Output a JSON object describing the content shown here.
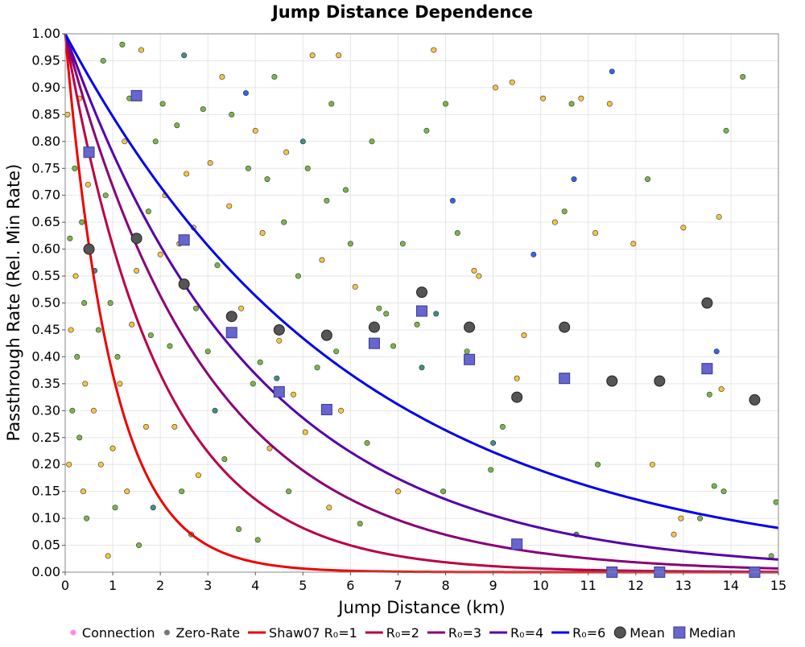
{
  "chart_data": {
    "type": "scatter",
    "title": "Jump Distance Dependence",
    "xlabel": "Jump Distance (km)",
    "ylabel": "Passthrough Rate (Rel. Min Rate)",
    "xlim": [
      0,
      15
    ],
    "ylim": [
      0,
      1
    ],
    "x_ticks": [
      "0",
      "1",
      "2",
      "3",
      "4",
      "5",
      "6",
      "7",
      "8",
      "9",
      "10",
      "11",
      "12",
      "13",
      "14",
      "15"
    ],
    "y_ticks": [
      "0.00",
      "0.05",
      "0.10",
      "0.15",
      "0.20",
      "0.25",
      "0.30",
      "0.35",
      "0.40",
      "0.45",
      "0.50",
      "0.55",
      "0.60",
      "0.65",
      "0.70",
      "0.75",
      "0.80",
      "0.85",
      "0.90",
      "0.95",
      "1.00"
    ],
    "grid": true,
    "legend_position": "bottom",
    "colors": {
      "connection": "#ff88ee",
      "zero_rate": "#777777",
      "r1": "#ee0000",
      "r2": "#bb0044",
      "r3": "#880077",
      "r4": "#5500aa",
      "r6": "#0000ee",
      "mean": "#555555",
      "median": "#6666cc",
      "point_low": "#f5c542",
      "point_mid": "#7ab648",
      "point_high": "#2f66e8"
    },
    "legend": [
      {
        "label": "Connection",
        "kind": "dot",
        "color": "#ff88ee"
      },
      {
        "label": "Zero-Rate",
        "kind": "dot",
        "color": "#777777"
      },
      {
        "label": "Shaw07 R₀=1",
        "kind": "line",
        "color": "#ee0000"
      },
      {
        "label": "R₀=2",
        "kind": "line",
        "color": "#bb0044"
      },
      {
        "label": "R₀=3",
        "kind": "line",
        "color": "#880077"
      },
      {
        "label": "R₀=4",
        "kind": "line",
        "color": "#5500aa"
      },
      {
        "label": "R₀=6",
        "kind": "line",
        "color": "#0000ee"
      },
      {
        "label": "Mean",
        "kind": "circle",
        "color": "#555555"
      },
      {
        "label": "Median",
        "kind": "square",
        "color": "#6666cc"
      }
    ],
    "curves": [
      {
        "name": "Shaw07 R₀=1",
        "r0": 1,
        "color": "#ee0000"
      },
      {
        "name": "R₀=2",
        "r0": 2,
        "color": "#bb0044"
      },
      {
        "name": "R₀=3",
        "r0": 3,
        "color": "#880077"
      },
      {
        "name": "R₀=4",
        "r0": 4,
        "color": "#5500aa"
      },
      {
        "name": "R₀=6",
        "r0": 6,
        "color": "#0000ee"
      }
    ],
    "means": [
      [
        0.5,
        0.6
      ],
      [
        1.5,
        0.62
      ],
      [
        2.5,
        0.535
      ],
      [
        3.5,
        0.475
      ],
      [
        4.5,
        0.45
      ],
      [
        5.5,
        0.44
      ],
      [
        6.5,
        0.455
      ],
      [
        7.5,
        0.52
      ],
      [
        8.5,
        0.455
      ],
      [
        9.5,
        0.325
      ],
      [
        10.5,
        0.455
      ],
      [
        11.5,
        0.355
      ],
      [
        12.5,
        0.355
      ],
      [
        13.5,
        0.5
      ],
      [
        14.5,
        0.32
      ]
    ],
    "medians": [
      [
        0.5,
        0.78
      ],
      [
        1.5,
        0.885
      ],
      [
        2.5,
        0.617
      ],
      [
        3.5,
        0.445
      ],
      [
        4.5,
        0.335
      ],
      [
        5.5,
        0.302
      ],
      [
        6.5,
        0.425
      ],
      [
        7.5,
        0.485
      ],
      [
        8.5,
        0.395
      ],
      [
        9.5,
        0.052
      ],
      [
        10.5,
        0.36
      ],
      [
        11.5,
        0.0
      ],
      [
        12.5,
        0.0
      ],
      [
        13.5,
        0.378
      ],
      [
        14.5,
        0.0
      ]
    ],
    "points": [
      [
        0.05,
        0.85,
        "y"
      ],
      [
        0.1,
        0.62,
        "g"
      ],
      [
        0.12,
        0.45,
        "y"
      ],
      [
        0.15,
        0.3,
        "g"
      ],
      [
        0.08,
        0.2,
        "y"
      ],
      [
        0.2,
        0.75,
        "g"
      ],
      [
        0.22,
        0.55,
        "y"
      ],
      [
        0.25,
        0.4,
        "g"
      ],
      [
        0.3,
        0.88,
        "y"
      ],
      [
        0.3,
        0.25,
        "g"
      ],
      [
        0.35,
        0.65,
        "g"
      ],
      [
        0.38,
        0.15,
        "y"
      ],
      [
        0.4,
        0.5,
        "g"
      ],
      [
        0.42,
        0.35,
        "y"
      ],
      [
        0.45,
        0.1,
        "g"
      ],
      [
        0.48,
        0.72,
        "y"
      ],
      [
        0.55,
        0.6,
        "g"
      ],
      [
        0.6,
        0.3,
        "y"
      ],
      [
        0.62,
        0.56,
        "t"
      ],
      [
        0.7,
        0.45,
        "g"
      ],
      [
        0.75,
        0.2,
        "y"
      ],
      [
        0.8,
        0.95,
        "g"
      ],
      [
        0.85,
        0.7,
        "g"
      ],
      [
        0.9,
        0.03,
        "y"
      ],
      [
        0.95,
        0.5,
        "g"
      ],
      [
        1.0,
        0.23,
        "y"
      ],
      [
        1.05,
        0.12,
        "g"
      ],
      [
        1.1,
        0.4,
        "g"
      ],
      [
        1.15,
        0.35,
        "y"
      ],
      [
        1.2,
        0.98,
        "g"
      ],
      [
        1.25,
        0.8,
        "y"
      ],
      [
        1.3,
        0.15,
        "y"
      ],
      [
        1.35,
        0.88,
        "g"
      ],
      [
        1.4,
        0.46,
        "y"
      ],
      [
        1.45,
        0.62,
        "g"
      ],
      [
        1.5,
        0.56,
        "y"
      ],
      [
        1.55,
        0.05,
        "g"
      ],
      [
        1.6,
        0.97,
        "y"
      ],
      [
        1.7,
        0.27,
        "y"
      ],
      [
        1.75,
        0.67,
        "g"
      ],
      [
        1.8,
        0.44,
        "g"
      ],
      [
        1.85,
        0.12,
        "t"
      ],
      [
        1.9,
        0.8,
        "g"
      ],
      [
        2.0,
        0.59,
        "y"
      ],
      [
        2.05,
        0.87,
        "g"
      ],
      [
        2.1,
        0.7,
        "y"
      ],
      [
        2.2,
        0.42,
        "g"
      ],
      [
        2.3,
        0.27,
        "y"
      ],
      [
        2.35,
        0.83,
        "g"
      ],
      [
        2.4,
        0.61,
        "y"
      ],
      [
        2.45,
        0.15,
        "g"
      ],
      [
        2.5,
        0.96,
        "t"
      ],
      [
        2.55,
        0.74,
        "y"
      ],
      [
        2.65,
        0.07,
        "g"
      ],
      [
        2.7,
        0.64,
        "y"
      ],
      [
        2.75,
        0.49,
        "g"
      ],
      [
        2.8,
        0.18,
        "y"
      ],
      [
        2.9,
        0.86,
        "g"
      ],
      [
        3.0,
        0.41,
        "g"
      ],
      [
        3.05,
        0.76,
        "y"
      ],
      [
        3.15,
        0.3,
        "t"
      ],
      [
        3.2,
        0.57,
        "g"
      ],
      [
        3.3,
        0.92,
        "y"
      ],
      [
        3.35,
        0.21,
        "g"
      ],
      [
        3.45,
        0.68,
        "y"
      ],
      [
        3.5,
        0.85,
        "g"
      ],
      [
        3.55,
        0.45,
        "y"
      ],
      [
        3.65,
        0.08,
        "g"
      ],
      [
        3.7,
        0.49,
        "y"
      ],
      [
        3.8,
        0.89,
        "b"
      ],
      [
        3.85,
        0.75,
        "g"
      ],
      [
        3.95,
        0.35,
        "g"
      ],
      [
        4.0,
        0.82,
        "y"
      ],
      [
        4.05,
        0.06,
        "g"
      ],
      [
        4.1,
        0.39,
        "g"
      ],
      [
        4.15,
        0.63,
        "y"
      ],
      [
        4.25,
        0.73,
        "g"
      ],
      [
        4.3,
        0.23,
        "y"
      ],
      [
        4.4,
        0.92,
        "g"
      ],
      [
        4.45,
        0.36,
        "t"
      ],
      [
        4.5,
        0.43,
        "y"
      ],
      [
        4.6,
        0.65,
        "g"
      ],
      [
        4.65,
        0.78,
        "y"
      ],
      [
        4.7,
        0.15,
        "g"
      ],
      [
        4.8,
        0.33,
        "y"
      ],
      [
        4.9,
        0.55,
        "g"
      ],
      [
        5.0,
        0.8,
        "t"
      ],
      [
        5.05,
        0.26,
        "y"
      ],
      [
        5.1,
        0.75,
        "g"
      ],
      [
        5.2,
        0.96,
        "y"
      ],
      [
        5.3,
        0.38,
        "g"
      ],
      [
        5.4,
        0.58,
        "y"
      ],
      [
        5.5,
        0.69,
        "g"
      ],
      [
        5.55,
        0.12,
        "y"
      ],
      [
        5.6,
        0.87,
        "g"
      ],
      [
        5.7,
        0.41,
        "g"
      ],
      [
        5.75,
        0.96,
        "y"
      ],
      [
        5.8,
        0.3,
        "y"
      ],
      [
        5.9,
        0.71,
        "g"
      ],
      [
        6.0,
        0.61,
        "g"
      ],
      [
        6.1,
        0.53,
        "y"
      ],
      [
        6.2,
        0.09,
        "g"
      ],
      [
        6.35,
        0.24,
        "g"
      ],
      [
        6.45,
        0.8,
        "g"
      ],
      [
        6.6,
        0.49,
        "g"
      ],
      [
        6.75,
        0.48,
        "g"
      ],
      [
        6.9,
        0.42,
        "g"
      ],
      [
        7.0,
        0.15,
        "y"
      ],
      [
        7.1,
        0.61,
        "g"
      ],
      [
        7.4,
        0.46,
        "g"
      ],
      [
        7.5,
        0.38,
        "t"
      ],
      [
        7.55,
        0.48,
        "y"
      ],
      [
        7.6,
        0.82,
        "g"
      ],
      [
        7.75,
        0.97,
        "y"
      ],
      [
        7.8,
        0.48,
        "t"
      ],
      [
        7.95,
        0.15,
        "g"
      ],
      [
        8.0,
        0.87,
        "g"
      ],
      [
        8.15,
        0.69,
        "b"
      ],
      [
        8.25,
        0.63,
        "g"
      ],
      [
        8.45,
        0.41,
        "g"
      ],
      [
        8.6,
        0.56,
        "y"
      ],
      [
        8.7,
        0.55,
        "y"
      ],
      [
        8.95,
        0.19,
        "g"
      ],
      [
        9.0,
        0.24,
        "t"
      ],
      [
        9.05,
        0.9,
        "y"
      ],
      [
        9.2,
        0.27,
        "g"
      ],
      [
        9.4,
        0.91,
        "y"
      ],
      [
        9.5,
        0.36,
        "y"
      ],
      [
        9.65,
        0.44,
        "y"
      ],
      [
        9.85,
        0.59,
        "b"
      ],
      [
        10.05,
        0.88,
        "y"
      ],
      [
        10.3,
        0.65,
        "y"
      ],
      [
        10.5,
        0.67,
        "g"
      ],
      [
        10.65,
        0.87,
        "g"
      ],
      [
        10.7,
        0.73,
        "b"
      ],
      [
        10.75,
        0.07,
        "t"
      ],
      [
        10.85,
        0.88,
        "y"
      ],
      [
        11.15,
        0.63,
        "y"
      ],
      [
        11.2,
        0.2,
        "g"
      ],
      [
        11.45,
        0.87,
        "y"
      ],
      [
        11.5,
        0.93,
        "b"
      ],
      [
        11.95,
        0.61,
        "y"
      ],
      [
        12.25,
        0.73,
        "g"
      ],
      [
        12.35,
        0.2,
        "y"
      ],
      [
        12.8,
        0.07,
        "y"
      ],
      [
        12.95,
        0.1,
        "y"
      ],
      [
        13.0,
        0.64,
        "y"
      ],
      [
        13.35,
        0.1,
        "g"
      ],
      [
        13.55,
        0.33,
        "g"
      ],
      [
        13.65,
        0.16,
        "g"
      ],
      [
        13.7,
        0.41,
        "b"
      ],
      [
        13.75,
        0.66,
        "y"
      ],
      [
        13.8,
        0.34,
        "y"
      ],
      [
        13.85,
        0.15,
        "g"
      ],
      [
        13.9,
        0.82,
        "g"
      ],
      [
        14.25,
        0.92,
        "g"
      ],
      [
        14.85,
        0.03,
        "g"
      ],
      [
        14.95,
        0.13,
        "g"
      ]
    ]
  }
}
